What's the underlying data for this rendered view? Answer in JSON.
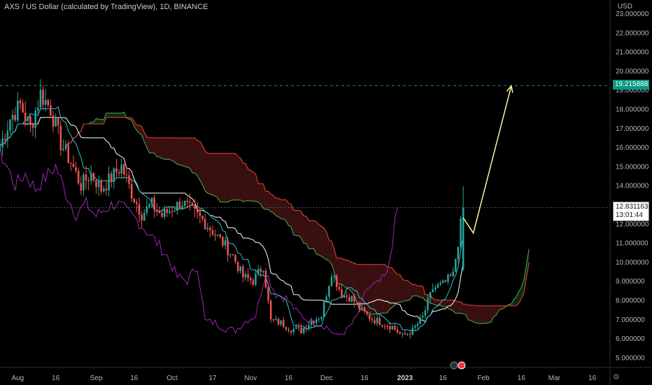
{
  "header": {
    "title": "AXS / US Dollar (calculated by TradingView), 1D, BINANCE",
    "currency": "USD"
  },
  "price_tags": {
    "target": "19.215888",
    "last_price": "12.831163",
    "countdown": "13:01:44"
  },
  "colors": {
    "up": "#26a69a",
    "down": "#ef5350",
    "tenkan": "#2ec4d6",
    "kijun": "#ffffff",
    "chikou": "#9c27b0",
    "span_a": "#4caf50",
    "span_b": "#f44336",
    "cloud_bear": "#3a1010",
    "cloud_bull": "#0d2a13",
    "projection": "#fff59d",
    "target_line": "#089981"
  },
  "chart_data": {
    "type": "candlestick",
    "title": "AXS / US Dollar (calculated by TradingView), 1D, BINANCE",
    "ylabel": "USD",
    "ylim": [
      4.5,
      23.5
    ],
    "y_ticks": [
      "5.000000",
      "6.000000",
      "7.000000",
      "8.000000",
      "9.000000",
      "10.000000",
      "11.000000",
      "12.000000",
      "13.000000",
      "14.000000",
      "15.000000",
      "16.000000",
      "17.000000",
      "18.000000",
      "19.000000",
      "20.000000",
      "21.000000",
      "22.000000",
      "23.000000"
    ],
    "x_start": "2022-07-25",
    "x_end": "2023-03-23",
    "x_ticks": [
      {
        "label": "Aug",
        "date": "2022-08-01"
      },
      {
        "label": "16",
        "date": "2022-08-16"
      },
      {
        "label": "Sep",
        "date": "2022-09-01"
      },
      {
        "label": "16",
        "date": "2022-09-16"
      },
      {
        "label": "Oct",
        "date": "2022-10-01"
      },
      {
        "label": "17",
        "date": "2022-10-17"
      },
      {
        "label": "Nov",
        "date": "2022-11-01"
      },
      {
        "label": "16",
        "date": "2022-11-16"
      },
      {
        "label": "Dec",
        "date": "2022-12-01"
      },
      {
        "label": "16",
        "date": "2022-12-16"
      },
      {
        "label": "2023",
        "date": "2023-01-01"
      },
      {
        "label": "16",
        "date": "2023-01-16"
      },
      {
        "label": "Feb",
        "date": "2023-02-01"
      },
      {
        "label": "16",
        "date": "2023-02-16"
      },
      {
        "label": "Mar",
        "date": "2023-03-01"
      },
      {
        "label": "16",
        "date": "2023-03-16"
      }
    ],
    "closes": [
      {
        "date": "2022-07-25",
        "value": 16.0
      },
      {
        "date": "2022-07-29",
        "value": 17.5
      },
      {
        "date": "2022-08-02",
        "value": 18.2
      },
      {
        "date": "2022-08-06",
        "value": 17.0
      },
      {
        "date": "2022-08-10",
        "value": 18.8
      },
      {
        "date": "2022-08-14",
        "value": 18.0
      },
      {
        "date": "2022-08-18",
        "value": 16.2
      },
      {
        "date": "2022-08-22",
        "value": 15.2
      },
      {
        "date": "2022-08-26",
        "value": 14.0
      },
      {
        "date": "2022-08-30",
        "value": 14.6
      },
      {
        "date": "2022-09-03",
        "value": 13.8
      },
      {
        "date": "2022-09-07",
        "value": 14.4
      },
      {
        "date": "2022-09-11",
        "value": 15.0
      },
      {
        "date": "2022-09-15",
        "value": 13.6
      },
      {
        "date": "2022-09-19",
        "value": 12.5
      },
      {
        "date": "2022-09-23",
        "value": 13.0
      },
      {
        "date": "2022-09-27",
        "value": 12.4
      },
      {
        "date": "2022-10-01",
        "value": 12.8
      },
      {
        "date": "2022-10-05",
        "value": 13.1
      },
      {
        "date": "2022-10-09",
        "value": 12.6
      },
      {
        "date": "2022-10-13",
        "value": 12.2
      },
      {
        "date": "2022-10-17",
        "value": 11.6
      },
      {
        "date": "2022-10-21",
        "value": 11.0
      },
      {
        "date": "2022-10-25",
        "value": 10.3
      },
      {
        "date": "2022-10-29",
        "value": 9.2
      },
      {
        "date": "2022-11-02",
        "value": 9.0
      },
      {
        "date": "2022-11-06",
        "value": 9.8
      },
      {
        "date": "2022-11-09",
        "value": 6.9
      },
      {
        "date": "2022-11-13",
        "value": 6.8
      },
      {
        "date": "2022-11-17",
        "value": 6.5
      },
      {
        "date": "2022-11-21",
        "value": 6.4
      },
      {
        "date": "2022-11-25",
        "value": 6.9
      },
      {
        "date": "2022-11-29",
        "value": 7.2
      },
      {
        "date": "2022-12-03",
        "value": 9.5
      },
      {
        "date": "2022-12-07",
        "value": 8.3
      },
      {
        "date": "2022-12-11",
        "value": 8.1
      },
      {
        "date": "2022-12-15",
        "value": 7.4
      },
      {
        "date": "2022-12-19",
        "value": 7.0
      },
      {
        "date": "2022-12-23",
        "value": 6.8
      },
      {
        "date": "2022-12-27",
        "value": 6.6
      },
      {
        "date": "2022-12-31",
        "value": 6.1
      },
      {
        "date": "2023-01-04",
        "value": 6.4
      },
      {
        "date": "2023-01-08",
        "value": 7.1
      },
      {
        "date": "2023-01-12",
        "value": 8.6
      },
      {
        "date": "2023-01-16",
        "value": 8.8
      },
      {
        "date": "2023-01-20",
        "value": 9.3
      },
      {
        "date": "2023-01-24",
        "value": 12.8
      }
    ],
    "projection": [
      {
        "date": "2023-01-24",
        "value": 12.3
      },
      {
        "date": "2023-01-28",
        "value": 11.5
      },
      {
        "date": "2023-02-12",
        "value": 19.2
      }
    ],
    "target_level": 19.215888,
    "last_price": 12.831163
  }
}
